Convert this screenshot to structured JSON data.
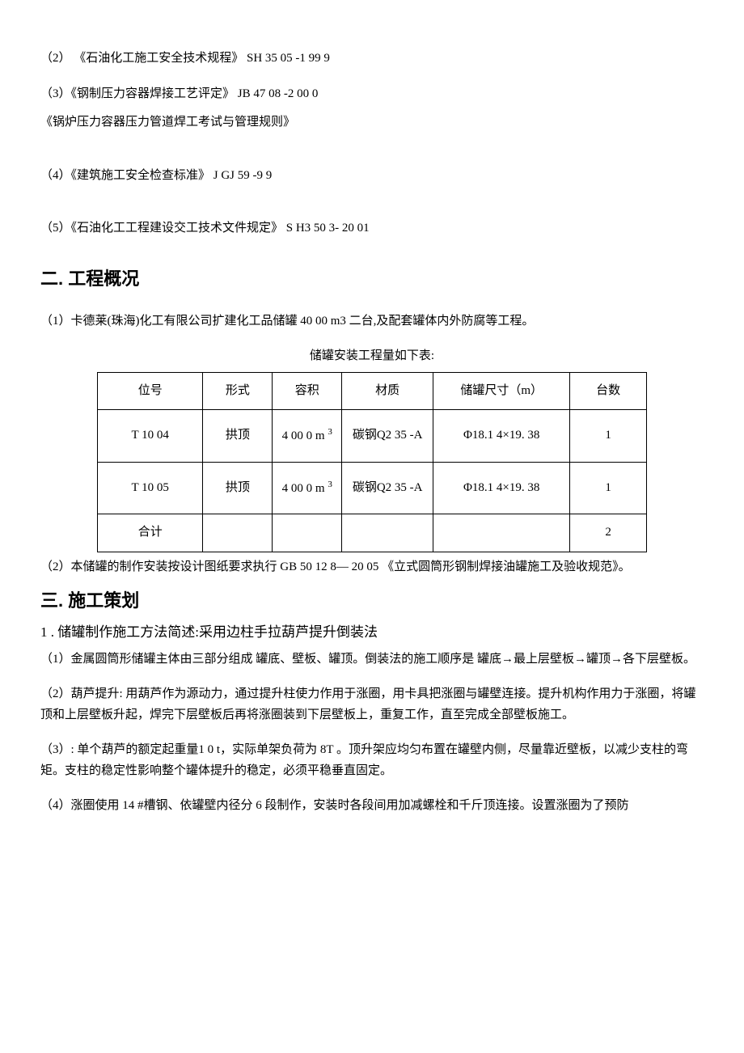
{
  "refs": {
    "r2": "（2） 《石油化工施工安全技术规程》  SH 35 05 -1  99 9",
    "r3": "（3）《钢制压力容器焊接工艺评定》 JB 47 08 -2  00 0",
    "r3b": "《锅炉压力容器压力管道焊工考试与管理规则》",
    "r4": "（4）《建筑施工安全检查标准》  J GJ 59 -9 9",
    "r5": "（5）《石油化工工程建设交工技术文件规定》 S H3 50 3- 20 01"
  },
  "section2": {
    "heading": "二. 工程概况",
    "p1": "（1）卡德莱(珠海)化工有限公司扩建化工品储罐 40 00 m3 二台,及配套罐体内外防腐等工程。",
    "tableCaption": "储罐安装工程量如下表:",
    "table": {
      "headers": [
        "位号",
        "形式",
        "容积",
        "材质",
        "储罐尺寸（m）",
        "台数"
      ],
      "rows": [
        {
          "pos": "T 10 04",
          "form": "拱顶",
          "vol": "4 00 0 m",
          "vol_sup": "3",
          "mat": "碳钢Q2 35 -A",
          "dim": "Φ18.1 4×19. 38",
          "cnt": "1"
        },
        {
          "pos": "T 10 05",
          "form": "拱顶",
          "vol": "4 00 0 m",
          "vol_sup": "3",
          "mat": "碳钢Q2 35 -A",
          "dim": "Φ18.1 4×19. 38",
          "cnt": "1"
        }
      ],
      "total": {
        "label": "合计",
        "cnt": "2"
      }
    },
    "p2": "（2）本储罐的制作安装按设计图纸要求执行 GB 50 12 8— 20 05 《立式圆筒形钢制焊接油罐施工及验收规范》。"
  },
  "section3": {
    "heading": "三. 施工策划",
    "sub1": "1 . 储罐制作施工方法简述:采用边柱手拉葫芦提升倒装法",
    "p1": "（1）金属圆筒形储罐主体由三部分组成 罐底、壁板、罐顶。倒装法的施工顺序是 罐底→最上层壁板→罐顶→各下层壁板。",
    "p2": "（2）葫芦提升: 用葫芦作为源动力，通过提升柱使力作用于涨圈，用卡具把涨圈与罐壁连接。提升机构作用力于涨圈，将罐顶和上层壁板升起，焊完下层壁板后再将涨圈装到下层壁板上，重复工作，直至完成全部壁板施工。",
    "p3": "（3）: 单个葫芦的额定起重量1 0  t，实际单架负荷为 8T 。顶升架应均匀布置在罐壁内侧，尽量靠近壁板，以减少支柱的弯矩。支柱的稳定性影响整个罐体提升的稳定，必须平稳垂直固定。",
    "p4": "（4）涨圈使用 14 #槽钢、依罐壁内径分 6 段制作，安装时各段间用加减螺栓和千斤顶连接。设置涨圈为了预防"
  }
}
